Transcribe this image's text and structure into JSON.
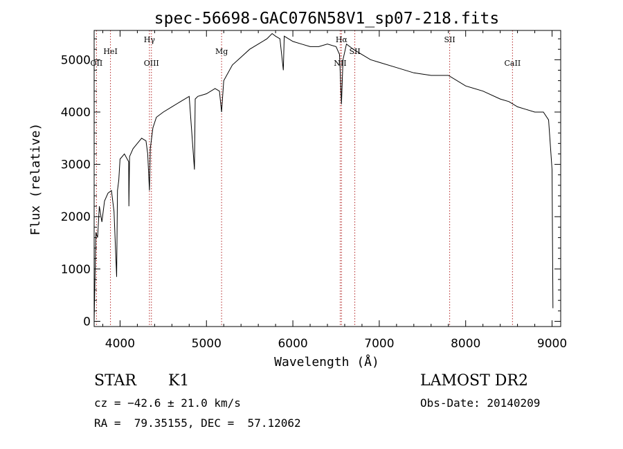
{
  "chart_data": {
    "type": "line",
    "title": "spec-56698-GAC076N58V1_sp07-218.fits",
    "xlabel": "Wavelength (Å)",
    "ylabel": "Flux (relative)",
    "xlim": [
      3700,
      9100
    ],
    "ylim": [
      -100,
      5560
    ],
    "xticks": [
      4000,
      5000,
      6000,
      7000,
      8000,
      9000
    ],
    "yticks": [
      0,
      1000,
      2000,
      3000,
      4000,
      5000
    ],
    "line_color": "#000000",
    "marker_color": "#b22222",
    "series": [
      {
        "x": [
          3700,
          3720,
          3740,
          3760,
          3790,
          3820,
          3860,
          3900,
          3930,
          3960,
          3970,
          3985,
          4000,
          4050,
          4100,
          4102,
          4110,
          4150,
          4200,
          4250,
          4300,
          4320,
          4340,
          4350,
          4380,
          4420,
          4500,
          4600,
          4700,
          4800,
          4861,
          4870,
          4900,
          5000,
          5100,
          5150,
          5175,
          5200,
          5300,
          5400,
          5500,
          5600,
          5700,
          5760,
          5800,
          5850,
          5890,
          5900,
          5950,
          6000,
          6100,
          6200,
          6300,
          6400,
          6500,
          6540,
          6563,
          6580,
          6620,
          6700,
          6800,
          6900,
          7000,
          7200,
          7400,
          7600,
          7800,
          8000,
          8200,
          8400,
          8500,
          8600,
          8700,
          8800,
          8900,
          8960,
          9000,
          9010
        ],
        "y": [
          0,
          1700,
          1600,
          2200,
          1900,
          2300,
          2450,
          2500,
          2100,
          850,
          2500,
          2700,
          3100,
          3200,
          3050,
          2200,
          3150,
          3300,
          3400,
          3500,
          3450,
          3200,
          2500,
          3300,
          3700,
          3900,
          4000,
          4100,
          4200,
          4300,
          2900,
          4250,
          4300,
          4350,
          4450,
          4400,
          4000,
          4600,
          4900,
          5050,
          5200,
          5300,
          5400,
          5500,
          5450,
          5400,
          4800,
          5450,
          5400,
          5350,
          5300,
          5250,
          5250,
          5300,
          5250,
          5100,
          4150,
          5000,
          5300,
          5200,
          5100,
          5000,
          4950,
          4850,
          4750,
          4700,
          4700,
          4500,
          4400,
          4250,
          4200,
          4100,
          4050,
          4000,
          4000,
          3850,
          2900,
          250
        ]
      }
    ],
    "lines": [
      {
        "wavelength": 3727,
        "label": "OII",
        "row": "lower"
      },
      {
        "wavelength": 3889,
        "label": "HeI",
        "row": "upper"
      },
      {
        "wavelength": 4340,
        "label": "Hγ",
        "row": "top"
      },
      {
        "wavelength": 4363,
        "label": "OIII",
        "row": "lower"
      },
      {
        "wavelength": 5175,
        "label": "Mg",
        "row": "upper"
      },
      {
        "wavelength": 6548,
        "label": "NII",
        "row": "lower"
      },
      {
        "wavelength": 6563,
        "label": "Hα",
        "row": "top"
      },
      {
        "wavelength": 6717,
        "label": "SII",
        "row": "upper"
      },
      {
        "wavelength": 7815,
        "label": "SII",
        "row": "top"
      },
      {
        "wavelength": 8542,
        "label": "CaII",
        "row": "lower"
      }
    ]
  },
  "info": {
    "object_type": "STAR",
    "subclass": "K1",
    "survey": "LAMOST DR2",
    "velocity": "cz = −42.6 ± 21.0 km/s",
    "obs_date": "Obs-Date: 20140209",
    "coords": "RA =  79.35155, DEC =  57.12062"
  }
}
